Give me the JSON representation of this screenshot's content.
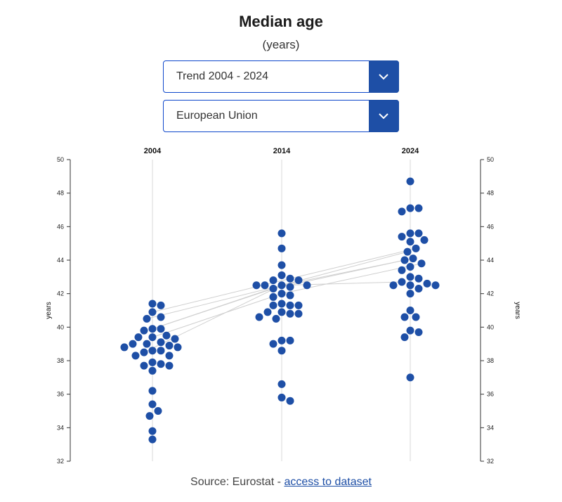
{
  "header": {
    "title": "Median age",
    "subtitle": "(years)"
  },
  "controls": {
    "period_select": {
      "value": "Trend 2004 - 2024",
      "icon": "chevron-down-icon"
    },
    "geo_select": {
      "value": "European Union",
      "icon": "chevron-down-icon"
    }
  },
  "footer": {
    "source_prefix": "Source: Eurostat - ",
    "link_text": "access to dataset"
  },
  "colors": {
    "accent": "#1e4fa6",
    "dot": "#1e4fa6",
    "grid": "#d8d8d8",
    "trend": "#cfcfcf"
  },
  "chart_data": {
    "type": "scatter",
    "subtype": "beeswarm",
    "title": "Median age",
    "subtitle": "(years)",
    "ylabel": "years",
    "ylim": [
      32,
      50
    ],
    "yticks": [
      32,
      34,
      36,
      38,
      40,
      42,
      44,
      46,
      48,
      50
    ],
    "grid": false,
    "categories": [
      "2004",
      "2014",
      "2024"
    ],
    "series": [
      {
        "x": "2004",
        "values": [
          41.4,
          41.3,
          40.9,
          40.6,
          40.5,
          39.9,
          39.9,
          39.8,
          39.5,
          39.4,
          39.4,
          39.3,
          39.1,
          39.0,
          39.0,
          38.9,
          38.8,
          38.8,
          38.6,
          38.6,
          38.5,
          38.3,
          38.3,
          37.9,
          37.8,
          37.7,
          37.7,
          37.4,
          36.2,
          35.4,
          35.0,
          34.7,
          33.8,
          33.3
        ]
      },
      {
        "x": "2014",
        "values": [
          45.6,
          44.7,
          43.7,
          43.1,
          42.9,
          42.8,
          42.8,
          42.5,
          42.5,
          42.5,
          42.5,
          42.4,
          42.3,
          42.0,
          41.9,
          41.8,
          41.4,
          41.3,
          41.3,
          41.3,
          40.9,
          40.9,
          40.8,
          40.8,
          40.6,
          40.5,
          39.2,
          39.2,
          39.0,
          38.6,
          36.6,
          35.8,
          35.6
        ]
      },
      {
        "x": "2024",
        "values": [
          48.7,
          47.1,
          47.1,
          46.9,
          45.6,
          45.6,
          45.4,
          45.2,
          45.1,
          44.7,
          44.5,
          44.1,
          44.0,
          43.8,
          43.6,
          43.4,
          43.0,
          42.9,
          42.7,
          42.6,
          42.5,
          42.5,
          42.5,
          42.3,
          42.0,
          41.0,
          40.6,
          40.6,
          39.8,
          39.7,
          39.4,
          37.0
        ]
      }
    ],
    "trend_lines": [
      [
        40.9,
        42.9,
        44.7
      ],
      [
        40.5,
        42.5,
        44.5
      ],
      [
        39.9,
        42.5,
        44.1
      ],
      [
        39.9,
        42.3,
        44.0
      ],
      [
        39.4,
        42.0,
        43.8
      ],
      [
        38.5,
        42.5,
        42.8
      ]
    ]
  }
}
